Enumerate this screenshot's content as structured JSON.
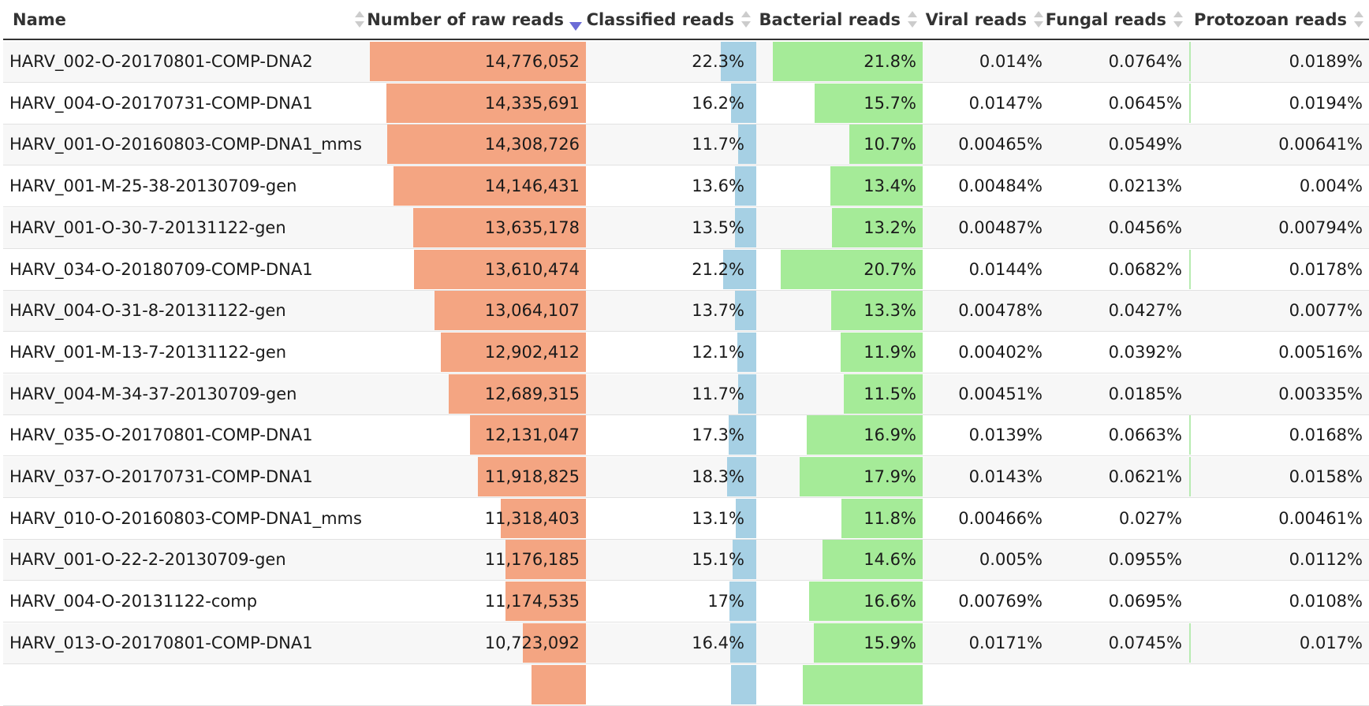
{
  "columns": [
    {
      "key": "name",
      "label": "Name",
      "sorted": false
    },
    {
      "key": "raw",
      "label": "Number of raw reads",
      "sorted": true
    },
    {
      "key": "classified",
      "label": "Classified reads",
      "sorted": false
    },
    {
      "key": "bacterial",
      "label": "Bacterial reads",
      "sorted": false
    },
    {
      "key": "viral",
      "label": "Viral reads",
      "sorted": false
    },
    {
      "key": "fungal",
      "label": "Fungal reads",
      "sorted": false
    },
    {
      "key": "protozoan",
      "label": "Protozoan reads",
      "sorted": false
    }
  ],
  "colors": {
    "raw_bar": "#f4a582",
    "classified_bar": "#a6d0e4",
    "bacterial_bar": "#a5eb98",
    "separator": "#b7ebb1"
  },
  "rows": [
    {
      "name": "HARV_002-O-20170801-COMP-DNA2",
      "raw": "14,776,052",
      "raw_value": 14776052,
      "classified": "22.3%",
      "classified_value": 22.3,
      "bacterial": "21.8%",
      "bacterial_value": 21.8,
      "viral": "0.014%",
      "fungal": "0.0764%",
      "protozoan": "0.0189%"
    },
    {
      "name": "HARV_004-O-20170731-COMP-DNA1",
      "raw": "14,335,691",
      "raw_value": 14335691,
      "classified": "16.2%",
      "classified_value": 16.2,
      "bacterial": "15.7%",
      "bacterial_value": 15.7,
      "viral": "0.0147%",
      "fungal": "0.0645%",
      "protozoan": "0.0194%"
    },
    {
      "name": "HARV_001-O-20160803-COMP-DNA1_mms",
      "raw": "14,308,726",
      "raw_value": 14308726,
      "classified": "11.7%",
      "classified_value": 11.7,
      "bacterial": "10.7%",
      "bacterial_value": 10.7,
      "viral": "0.00465%",
      "fungal": "0.0549%",
      "protozoan": "0.00641%"
    },
    {
      "name": "HARV_001-M-25-38-20130709-gen",
      "raw": "14,146,431",
      "raw_value": 14146431,
      "classified": "13.6%",
      "classified_value": 13.6,
      "bacterial": "13.4%",
      "bacterial_value": 13.4,
      "viral": "0.00484%",
      "fungal": "0.0213%",
      "protozoan": "0.004%"
    },
    {
      "name": "HARV_001-O-30-7-20131122-gen",
      "raw": "13,635,178",
      "raw_value": 13635178,
      "classified": "13.5%",
      "classified_value": 13.5,
      "bacterial": "13.2%",
      "bacterial_value": 13.2,
      "viral": "0.00487%",
      "fungal": "0.0456%",
      "protozoan": "0.00794%"
    },
    {
      "name": "HARV_034-O-20180709-COMP-DNA1",
      "raw": "13,610,474",
      "raw_value": 13610474,
      "classified": "21.2%",
      "classified_value": 21.2,
      "bacterial": "20.7%",
      "bacterial_value": 20.7,
      "viral": "0.0144%",
      "fungal": "0.0682%",
      "protozoan": "0.0178%"
    },
    {
      "name": "HARV_004-O-31-8-20131122-gen",
      "raw": "13,064,107",
      "raw_value": 13064107,
      "classified": "13.7%",
      "classified_value": 13.7,
      "bacterial": "13.3%",
      "bacterial_value": 13.3,
      "viral": "0.00478%",
      "fungal": "0.0427%",
      "protozoan": "0.0077%"
    },
    {
      "name": "HARV_001-M-13-7-20131122-gen",
      "raw": "12,902,412",
      "raw_value": 12902412,
      "classified": "12.1%",
      "classified_value": 12.1,
      "bacterial": "11.9%",
      "bacterial_value": 11.9,
      "viral": "0.00402%",
      "fungal": "0.0392%",
      "protozoan": "0.00516%"
    },
    {
      "name": "HARV_004-M-34-37-20130709-gen",
      "raw": "12,689,315",
      "raw_value": 12689315,
      "classified": "11.7%",
      "classified_value": 11.7,
      "bacterial": "11.5%",
      "bacterial_value": 11.5,
      "viral": "0.00451%",
      "fungal": "0.0185%",
      "protozoan": "0.00335%"
    },
    {
      "name": "HARV_035-O-20170801-COMP-DNA1",
      "raw": "12,131,047",
      "raw_value": 12131047,
      "classified": "17.3%",
      "classified_value": 17.3,
      "bacterial": "16.9%",
      "bacterial_value": 16.9,
      "viral": "0.0139%",
      "fungal": "0.0663%",
      "protozoan": "0.0168%"
    },
    {
      "name": "HARV_037-O-20170731-COMP-DNA1",
      "raw": "11,918,825",
      "raw_value": 11918825,
      "classified": "18.3%",
      "classified_value": 18.3,
      "bacterial": "17.9%",
      "bacterial_value": 17.9,
      "viral": "0.0143%",
      "fungal": "0.0621%",
      "protozoan": "0.0158%"
    },
    {
      "name": "HARV_010-O-20160803-COMP-DNA1_mms",
      "raw": "11,318,403",
      "raw_value": 11318403,
      "classified": "13.1%",
      "classified_value": 13.1,
      "bacterial": "11.8%",
      "bacterial_value": 11.8,
      "viral": "0.00466%",
      "fungal": "0.027%",
      "protozoan": "0.00461%"
    },
    {
      "name": "HARV_001-O-22-2-20130709-gen",
      "raw": "11,176,185",
      "raw_value": 11176185,
      "classified": "15.1%",
      "classified_value": 15.1,
      "bacterial": "14.6%",
      "bacterial_value": 14.6,
      "viral": "0.005%",
      "fungal": "0.0955%",
      "protozoan": "0.0112%"
    },
    {
      "name": "HARV_004-O-20131122-comp",
      "raw": "11,174,535",
      "raw_value": 11174535,
      "classified": "17%",
      "classified_value": 17.0,
      "bacterial": "16.6%",
      "bacterial_value": 16.6,
      "viral": "0.00769%",
      "fungal": "0.0695%",
      "protozoan": "0.0108%"
    },
    {
      "name": "HARV_013-O-20170801-COMP-DNA1",
      "raw": "10,723,092",
      "raw_value": 10723092,
      "classified": "16.4%",
      "classified_value": 16.4,
      "bacterial": "15.9%",
      "bacterial_value": 15.9,
      "viral": "0.0171%",
      "fungal": "0.0745%",
      "protozoan": "0.017%"
    },
    {
      "name": "",
      "raw": "",
      "raw_value": 10500000,
      "classified": "",
      "classified_value": 16.0,
      "bacterial": "",
      "bacterial_value": 17.5,
      "viral": "",
      "fungal": "",
      "protozoan": ""
    }
  ]
}
